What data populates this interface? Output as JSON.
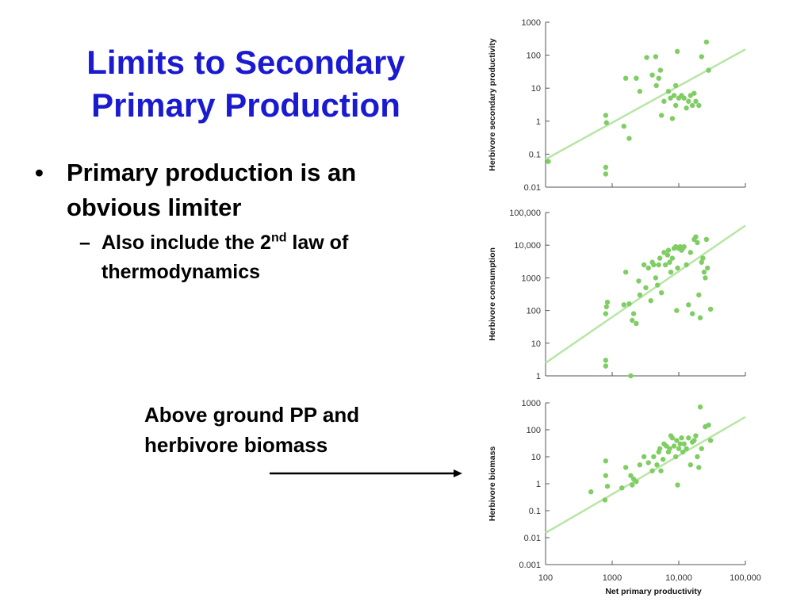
{
  "slide": {
    "title_line1": "Limits to Secondary",
    "title_line2": "Primary Production",
    "bullet_glyph": "•",
    "bullet1": "Primary production is an obvious limiter",
    "dash_glyph": "–",
    "sub_bullet_pre": "Also include the 2",
    "sub_bullet_sup": "nd",
    "sub_bullet_post": " law of thermodynamics",
    "annotation": "Above ground PP and herbivore biomass",
    "arrow_color": "#000000"
  },
  "colors": {
    "title": "#1a1ad0",
    "points": "#7fcd63",
    "fit_line": "#b7e6a5"
  },
  "chart_data": [
    {
      "type": "scatter",
      "title": "",
      "xlabel": "",
      "ylabel": "Herbivore secondary productivity",
      "xscale": "log",
      "yscale": "log",
      "xlim": [
        100,
        100000
      ],
      "ylim": [
        0.01,
        1000
      ],
      "ytick_labels": [
        "0.01",
        "0.1",
        "1",
        "10",
        "100",
        "1000"
      ],
      "fit_line": [
        [
          100,
          0.07
        ],
        [
          100000,
          150
        ]
      ],
      "points": [
        [
          110,
          0.06
        ],
        [
          800,
          0.04
        ],
        [
          800,
          0.025
        ],
        [
          800,
          1.5
        ],
        [
          820,
          0.9
        ],
        [
          1500,
          0.7
        ],
        [
          1800,
          0.3
        ],
        [
          1600,
          20
        ],
        [
          2300,
          20
        ],
        [
          2600,
          8
        ],
        [
          3300,
          85
        ],
        [
          4000,
          25
        ],
        [
          4500,
          90
        ],
        [
          4600,
          12
        ],
        [
          5000,
          20
        ],
        [
          5300,
          35
        ],
        [
          5500,
          1.5
        ],
        [
          6000,
          4
        ],
        [
          7000,
          8
        ],
        [
          7500,
          5
        ],
        [
          8000,
          1.2
        ],
        [
          9000,
          12
        ],
        [
          8500,
          6
        ],
        [
          9500,
          130
        ],
        [
          9000,
          3
        ],
        [
          10000,
          5
        ],
        [
          11000,
          6
        ],
        [
          12000,
          5
        ],
        [
          13000,
          2.5
        ],
        [
          14000,
          4
        ],
        [
          15000,
          6
        ],
        [
          16000,
          3
        ],
        [
          17000,
          7
        ],
        [
          18000,
          4
        ],
        [
          20000,
          3
        ],
        [
          22000,
          90
        ],
        [
          26000,
          250
        ],
        [
          28000,
          35
        ]
      ]
    },
    {
      "type": "scatter",
      "title": "",
      "xlabel": "",
      "ylabel": "Herbivore consumption",
      "xscale": "log",
      "yscale": "log",
      "xlim": [
        100,
        100000
      ],
      "ylim": [
        1,
        100000
      ],
      "ytick_labels": [
        "1",
        "10",
        "100",
        "1000",
        "10,000",
        "100,000"
      ],
      "fit_line": [
        [
          100,
          2.5
        ],
        [
          100000,
          40000
        ]
      ],
      "points": [
        [
          800,
          3
        ],
        [
          800,
          2
        ],
        [
          800,
          80
        ],
        [
          820,
          130
        ],
        [
          850,
          180
        ],
        [
          1500,
          150
        ],
        [
          1600,
          1500
        ],
        [
          1800,
          160
        ],
        [
          1900,
          1
        ],
        [
          2000,
          50
        ],
        [
          2100,
          80
        ],
        [
          2300,
          40
        ],
        [
          2500,
          800
        ],
        [
          2600,
          300
        ],
        [
          3000,
          2500
        ],
        [
          3200,
          500
        ],
        [
          3500,
          2000
        ],
        [
          3800,
          200
        ],
        [
          4000,
          3000
        ],
        [
          4200,
          2500
        ],
        [
          4500,
          1000
        ],
        [
          4800,
          600
        ],
        [
          5000,
          2500
        ],
        [
          5200,
          4000
        ],
        [
          5500,
          350
        ],
        [
          6000,
          6000
        ],
        [
          6300,
          2500
        ],
        [
          6800,
          5000
        ],
        [
          7000,
          7000
        ],
        [
          7300,
          3000
        ],
        [
          7600,
          1500
        ],
        [
          8000,
          4000
        ],
        [
          8500,
          8000
        ],
        [
          9000,
          9000
        ],
        [
          9300,
          100
        ],
        [
          9600,
          2000
        ],
        [
          10000,
          8000
        ],
        [
          10500,
          9000
        ],
        [
          11000,
          7000
        ],
        [
          11500,
          8000
        ],
        [
          12000,
          9000
        ],
        [
          13000,
          2500
        ],
        [
          14000,
          150
        ],
        [
          15000,
          6000
        ],
        [
          16000,
          80
        ],
        [
          17000,
          15000
        ],
        [
          18000,
          18000
        ],
        [
          19000,
          12000
        ],
        [
          20000,
          300
        ],
        [
          21000,
          60
        ],
        [
          22000,
          3000
        ],
        [
          23000,
          4000
        ],
        [
          24000,
          1500
        ],
        [
          25000,
          1000
        ],
        [
          26000,
          15000
        ],
        [
          27000,
          2000
        ],
        [
          30000,
          110
        ]
      ]
    },
    {
      "type": "scatter",
      "title": "",
      "xlabel": "Net primary productivity",
      "ylabel": "Herbivore biomass",
      "xscale": "log",
      "yscale": "log",
      "xlim": [
        100,
        100000
      ],
      "ylim": [
        0.001,
        1000
      ],
      "xtick_labels": [
        "100",
        "1000",
        "10,000",
        "100,000"
      ],
      "ytick_labels": [
        "0.001",
        "0.01",
        "0.1",
        "1",
        "10",
        "100",
        "1000"
      ],
      "fit_line": [
        [
          100,
          0.015
        ],
        [
          100000,
          300
        ]
      ],
      "points": [
        [
          480,
          0.5
        ],
        [
          780,
          0.25
        ],
        [
          800,
          7
        ],
        [
          800,
          2
        ],
        [
          850,
          0.8
        ],
        [
          1400,
          0.7
        ],
        [
          1600,
          4
        ],
        [
          1900,
          2
        ],
        [
          2000,
          0.9
        ],
        [
          2100,
          1.5
        ],
        [
          2300,
          1.2
        ],
        [
          2600,
          5
        ],
        [
          3000,
          10
        ],
        [
          3500,
          6
        ],
        [
          4000,
          3
        ],
        [
          4200,
          10
        ],
        [
          4700,
          5
        ],
        [
          5000,
          15
        ],
        [
          5200,
          20
        ],
        [
          5400,
          3
        ],
        [
          5800,
          8
        ],
        [
          6000,
          30
        ],
        [
          6500,
          25
        ],
        [
          7000,
          15
        ],
        [
          7300,
          20
        ],
        [
          7600,
          60
        ],
        [
          8000,
          50
        ],
        [
          8500,
          25
        ],
        [
          9000,
          10
        ],
        [
          9300,
          40
        ],
        [
          9600,
          0.9
        ],
        [
          10000,
          20
        ],
        [
          10500,
          30
        ],
        [
          11000,
          50
        ],
        [
          11500,
          15
        ],
        [
          12000,
          30
        ],
        [
          13000,
          20
        ],
        [
          14000,
          50
        ],
        [
          15000,
          5
        ],
        [
          16000,
          35
        ],
        [
          17000,
          40
        ],
        [
          18000,
          60
        ],
        [
          19000,
          10
        ],
        [
          20000,
          4
        ],
        [
          21000,
          700
        ],
        [
          22000,
          20
        ],
        [
          25000,
          130
        ],
        [
          28000,
          150
        ],
        [
          30000,
          40
        ]
      ]
    }
  ]
}
